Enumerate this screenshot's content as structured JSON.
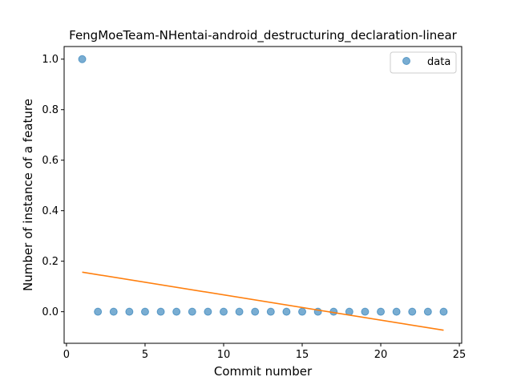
{
  "chart_data": {
    "type": "scatter",
    "title": "FengMoeTeam-NHentai-android_destructuring_declaration-linear",
    "xlabel": "Commit number",
    "ylabel": "Number of instance of a feature",
    "xlim": [
      -0.15,
      25.15
    ],
    "ylim": [
      -0.125,
      1.05
    ],
    "xticks": [
      0,
      5,
      10,
      15,
      20,
      25
    ],
    "yticks": [
      0.0,
      0.2,
      0.4,
      0.6,
      0.8,
      1.0
    ],
    "xtick_labels": [
      "0",
      "5",
      "10",
      "15",
      "20",
      "25"
    ],
    "ytick_labels": [
      "0.0",
      "0.2",
      "0.4",
      "0.6",
      "0.8",
      "1.0"
    ],
    "legend": {
      "position": "top-right",
      "entries": [
        "data"
      ]
    },
    "series": [
      {
        "name": "data",
        "kind": "scatter",
        "color": "#1f77b4",
        "x": [
          1,
          2,
          3,
          4,
          5,
          6,
          7,
          8,
          9,
          10,
          11,
          12,
          13,
          14,
          15,
          16,
          17,
          18,
          19,
          20,
          21,
          22,
          23,
          24
        ],
        "y": [
          1,
          0,
          0,
          0,
          0,
          0,
          0,
          0,
          0,
          0,
          0,
          0,
          0,
          0,
          0,
          0,
          0,
          0,
          0,
          0,
          0,
          0,
          0,
          0
        ]
      },
      {
        "kind": "line",
        "color": "#ff7f0e",
        "x": [
          1,
          24
        ],
        "y": [
          0.1567,
          -0.0733
        ]
      }
    ],
    "grid": false
  }
}
